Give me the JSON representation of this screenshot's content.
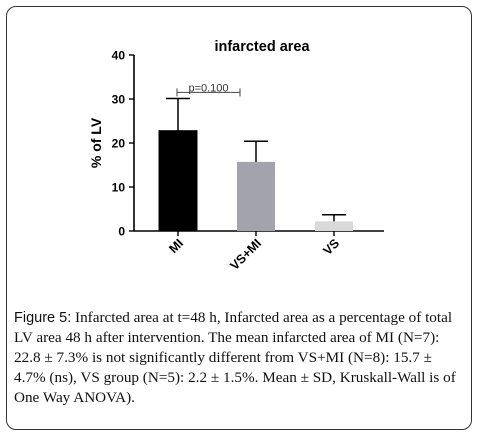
{
  "chart_data": {
    "type": "bar",
    "title": "infarcted area",
    "ylabel": "% of LV",
    "xlabel": "",
    "categories": [
      "MI",
      "VS+MI",
      "VS"
    ],
    "values": [
      22.8,
      15.7,
      2.2
    ],
    "sd": [
      7.3,
      4.7,
      1.5
    ],
    "colors": [
      "#000000",
      "#a3a3ad",
      "#d9d9d9"
    ],
    "ylim": [
      0,
      40
    ],
    "yticks": [
      0,
      10,
      20,
      30,
      40
    ],
    "grid": false,
    "legend": "none",
    "annotation": {
      "text": "p=0.100",
      "from": "MI",
      "to": "VS+MI",
      "y": 31.5
    }
  },
  "caption": {
    "label": "Figure 5:",
    "text": " Infarcted area at t=48 h, Infarcted area as a percentage of total LV area 48 h after intervention. The mean infarcted area of MI (N=7): 22.8 ± 7.3% is not significantly different from VS+MI (N=8): 15.7 ± 4.7% (ns), VS group (N=5): 2.2 ± 1.5%. Mean ± SD, Kruskall-Wall is of One Way ANOVA)."
  }
}
